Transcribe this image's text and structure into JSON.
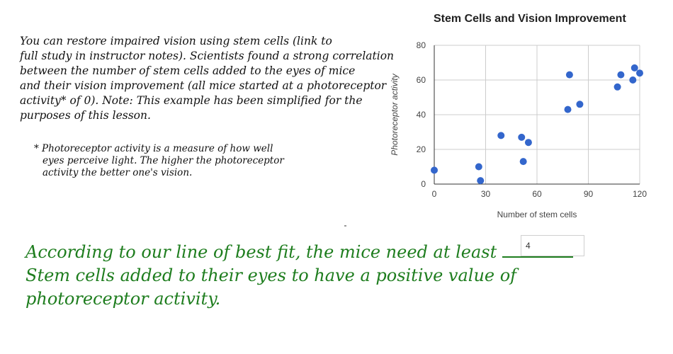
{
  "intro": {
    "lines": [
      "You can restore impaired vision using stem cells (link to",
      "full study in instructor notes).  Scientists found a strong correlation",
      "between the number of stem cells added to the eyes of mice",
      "and their vision improvement (all mice started at a photoreceptor",
      "activity* of 0).    Note: This example has been simplified for the",
      "purposes of this lesson."
    ]
  },
  "footnote": {
    "lines": [
      "* Photoreceptor activity is a measure of how well",
      "eyes perceive light. The higher the photoreceptor",
      "activity the better one's vision."
    ]
  },
  "chart_data": {
    "type": "scatter",
    "title": "Stem Cells and Vision Improvement",
    "xlabel": "Number of stem cells",
    "ylabel": "Photoreceptor activity",
    "xlim": [
      0,
      120
    ],
    "ylim": [
      0,
      80
    ],
    "xticks": [
      0,
      30,
      60,
      90,
      120
    ],
    "yticks": [
      0,
      20,
      40,
      60,
      80
    ],
    "grid": true,
    "point_color": "#3366cc",
    "points": [
      {
        "x": 0,
        "y": 8
      },
      {
        "x": 26,
        "y": 10
      },
      {
        "x": 27,
        "y": 2
      },
      {
        "x": 39,
        "y": 28
      },
      {
        "x": 51,
        "y": 27
      },
      {
        "x": 52,
        "y": 13
      },
      {
        "x": 55,
        "y": 24
      },
      {
        "x": 78,
        "y": 43
      },
      {
        "x": 79,
        "y": 63
      },
      {
        "x": 85,
        "y": 46
      },
      {
        "x": 107,
        "y": 56
      },
      {
        "x": 109,
        "y": 63
      },
      {
        "x": 116,
        "y": 60
      },
      {
        "x": 117,
        "y": 67
      },
      {
        "x": 120,
        "y": 64
      }
    ]
  },
  "question": {
    "line1": "According to our line of best fit, the mice need at least",
    "line2": "Stem cells added to their eyes to have a positive value of",
    "line3": "photoreceptor activity.",
    "color": "#1e7d1e"
  },
  "answer": {
    "value": "4"
  }
}
